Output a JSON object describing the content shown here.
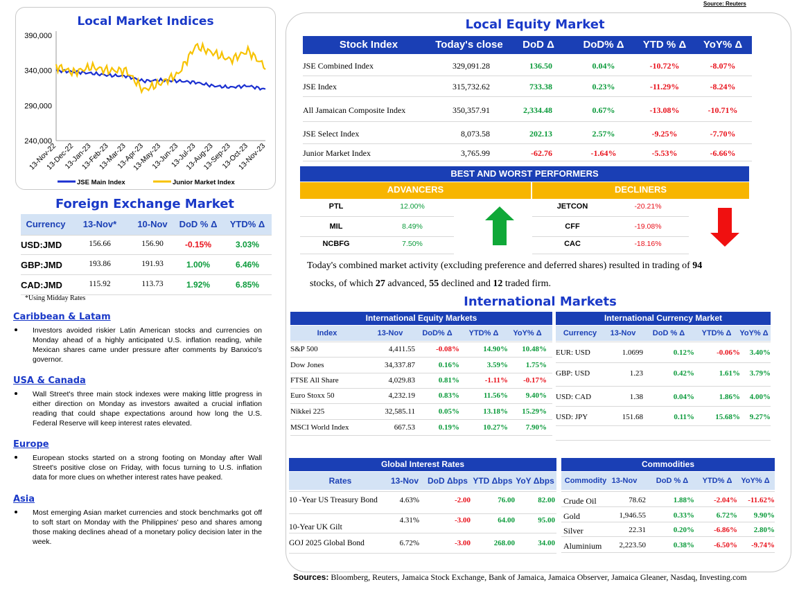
{
  "source_top": "Source: Reuters",
  "indices_chart": {
    "title": "Local Market Indices",
    "chart_data": {
      "type": "line",
      "x": [
        "13-Nov-22",
        "13-Dec-22",
        "13-Jan-23",
        "13-Feb-23",
        "13-Mar-23",
        "13-Apr-23",
        "13-May-23",
        "13-Jun-23",
        "13-Jul-23",
        "13-Aug-23",
        "13-Sep-23",
        "13-Oct-23",
        "13-Nov-23"
      ],
      "series": [
        {
          "name": "JSE Main Index",
          "color": "#1a2fd0",
          "values": [
            340000,
            338000,
            336000,
            333000,
            332000,
            325000,
            326000,
            325000,
            323000,
            318000,
            316000,
            318000,
            313000
          ]
        },
        {
          "name": "Junior Market Index",
          "color": "#f7c200",
          "values": [
            346000,
            337000,
            345000,
            340000,
            340000,
            312000,
            322000,
            335000,
            375000,
            365000,
            355000,
            368000,
            345000
          ]
        }
      ],
      "yticks": [
        "390,000",
        "340,000",
        "290,000",
        "240,000"
      ],
      "ylim": [
        240000,
        390000
      ]
    }
  },
  "fx": {
    "title": "Foreign Exchange Market",
    "headers": [
      "Currency",
      "13-Nov*",
      "10-Nov",
      "DoD % Δ",
      "YTD% Δ"
    ],
    "rows": [
      [
        "USD:JMD",
        "156.66",
        "156.90",
        "-0.15%",
        "3.03%"
      ],
      [
        "GBP:JMD",
        "193.86",
        "191.93",
        "1.00%",
        "6.46%"
      ],
      [
        "CAD:JMD",
        "115.92",
        "113.73",
        "1.92%",
        "6.85%"
      ]
    ],
    "footnote": "*Using Midday Rates"
  },
  "news": [
    {
      "title": "Caribbean & Latam",
      "text": "Investors avoided riskier Latin American stocks and currencies on Monday ahead of a highly anticipated U.S. inflation reading, while Mexican shares came under pressure after comments by Banxico's governor."
    },
    {
      "title": "USA & Canada",
      "text": "Wall Street's three main stock indexes were making little progress in either direction on Monday as investors awaited a crucial inflation reading that could shape expectations around how long the U.S. Federal Reserve will keep interest rates elevated."
    },
    {
      "title": "Europe",
      "text": "European stocks started on a strong footing on Monday after Wall Street's positive close on Friday, with focus turning to U.S. inflation data for more clues on whether interest rates have peaked."
    },
    {
      "title": "Asia",
      "text": "Most emerging Asian market currencies and stock benchmarks got off to soft start on Monday with the Philippines' peso and shares among those making declines ahead of a monetary policy decision later in the week."
    }
  ],
  "equity": {
    "title": "Local Equity Market",
    "headers": [
      "Stock Index",
      "Today's close",
      "DoD Δ",
      "DoD% Δ",
      "YTD % Δ",
      "YoY% Δ"
    ],
    "rows": [
      [
        "JSE Combined Index",
        "329,091.28",
        "136.50",
        "0.04%",
        "-10.72%",
        "-8.07%"
      ],
      [
        "JSE Index",
        "315,732.62",
        "733.38",
        "0.23%",
        "-11.29%",
        "-8.24%"
      ],
      [
        "All Jamaican Composite Index",
        "350,357.91",
        "2,334.48",
        "0.67%",
        "-13.08%",
        "-10.71%"
      ],
      [
        "JSE Select Index",
        "8,073.58",
        "202.13",
        "2.57%",
        "-9.25%",
        "-7.70%"
      ],
      [
        "Junior Market Index",
        "3,765.99",
        "-62.76",
        "-1.64%",
        "-5.53%",
        "-6.66%"
      ]
    ]
  },
  "performers": {
    "title": "BEST AND WORST PERFORMERS",
    "adv_label": "ADVANCERS",
    "dec_label": "DECLINERS",
    "advancers": [
      [
        "PTL",
        "12.00%"
      ],
      [
        "MIL",
        "8.49%"
      ],
      [
        "NCBFG",
        "7.50%"
      ]
    ],
    "decliners": [
      [
        "JETCON",
        "-20.21%"
      ],
      [
        "CFF",
        "-19.08%"
      ],
      [
        "CAC",
        "-18.16%"
      ]
    ],
    "arrow_up_color": "#10a838",
    "arrow_down_color": "#f01010"
  },
  "summary": {
    "p1": "Today's combined market activity (excluding preference and deferred shares) resulted in trading of ",
    "total": "94",
    "p2": "stocks, of which ",
    "adv": "27",
    "p3": " advanced, ",
    "dec": "55",
    "p4": " declined and ",
    "firm": "12",
    "p5": " traded firm."
  },
  "intl_title": "International Markets",
  "intl_equity": {
    "title": "International Equity Markets",
    "headers": [
      "Index",
      "13-Nov",
      "DoD% Δ",
      "YTD% Δ",
      "YoY% Δ"
    ],
    "rows": [
      [
        "S&P 500",
        "4,411.55",
        "-0.08%",
        "14.90%",
        "10.48%"
      ],
      [
        "Dow Jones",
        "34,337.87",
        "0.16%",
        "3.59%",
        "1.75%"
      ],
      [
        "FTSE All Share",
        "4,029.83",
        "0.81%",
        "-1.11%",
        "-0.17%"
      ],
      [
        "Euro Stoxx 50",
        "4,232.19",
        "0.83%",
        "11.56%",
        "9.40%"
      ],
      [
        "Nikkei 225",
        "32,585.11",
        "0.05%",
        "13.18%",
        "15.29%"
      ],
      [
        "MSCI World Index",
        "667.53",
        "0.19%",
        "10.27%",
        "7.90%"
      ]
    ]
  },
  "intl_currency": {
    "title": "International Currency Market",
    "headers": [
      "Currency",
      "13-Nov",
      "DoD % Δ",
      "YTD% Δ",
      "YoY% Δ"
    ],
    "rows": [
      [
        "EUR: USD",
        "1.0699",
        "0.12%",
        "-0.06%",
        "3.40%"
      ],
      [
        "GBP: USD",
        "1.23",
        "0.42%",
        "1.61%",
        "3.79%"
      ],
      [
        "USD: CAD",
        "1.38",
        "0.04%",
        "1.86%",
        "4.00%"
      ],
      [
        "USD: JPY",
        "151.68",
        "0.11%",
        "15.68%",
        "9.27%"
      ]
    ]
  },
  "rates": {
    "title": "Global Interest Rates",
    "headers": [
      "Rates",
      "13-Nov",
      "DoD Δbps",
      "YTD Δbps",
      "YoY Δbps"
    ],
    "rows": [
      [
        "10 -Year US Treasury Bond",
        "4.63%",
        "-2.00",
        "76.00",
        "82.00"
      ],
      [
        "10-Year UK Gilt",
        "4.31%",
        "-3.00",
        "64.00",
        "95.00"
      ],
      [
        "GOJ 2025 Global Bond",
        "6.72%",
        "-3.00",
        "268.00",
        "34.00"
      ]
    ]
  },
  "commodities": {
    "title": "Commodities",
    "headers": [
      "Commodity",
      "13-Nov",
      "DoD % Δ",
      "YTD% Δ",
      "YoY% Δ"
    ],
    "rows": [
      [
        "Crude Oil",
        "78.62",
        "1.88%",
        "-2.04%",
        "-11.62%"
      ],
      [
        "Gold",
        "1,946.55",
        "0.33%",
        "6.72%",
        "9.90%"
      ],
      [
        "Silver",
        "22.31",
        "0.20%",
        "-6.86%",
        "2.80%"
      ],
      [
        "Aluminium",
        "2,223.50",
        "0.38%",
        "-6.50%",
        "-9.74%"
      ]
    ]
  },
  "sources": {
    "label": "Sources:",
    "text": " Bloomberg, Reuters, Jamaica Stock Exchange, Bank of Jamaica, Jamaica Observer, Jamaica Gleaner, Nasdaq, Investing.com"
  }
}
